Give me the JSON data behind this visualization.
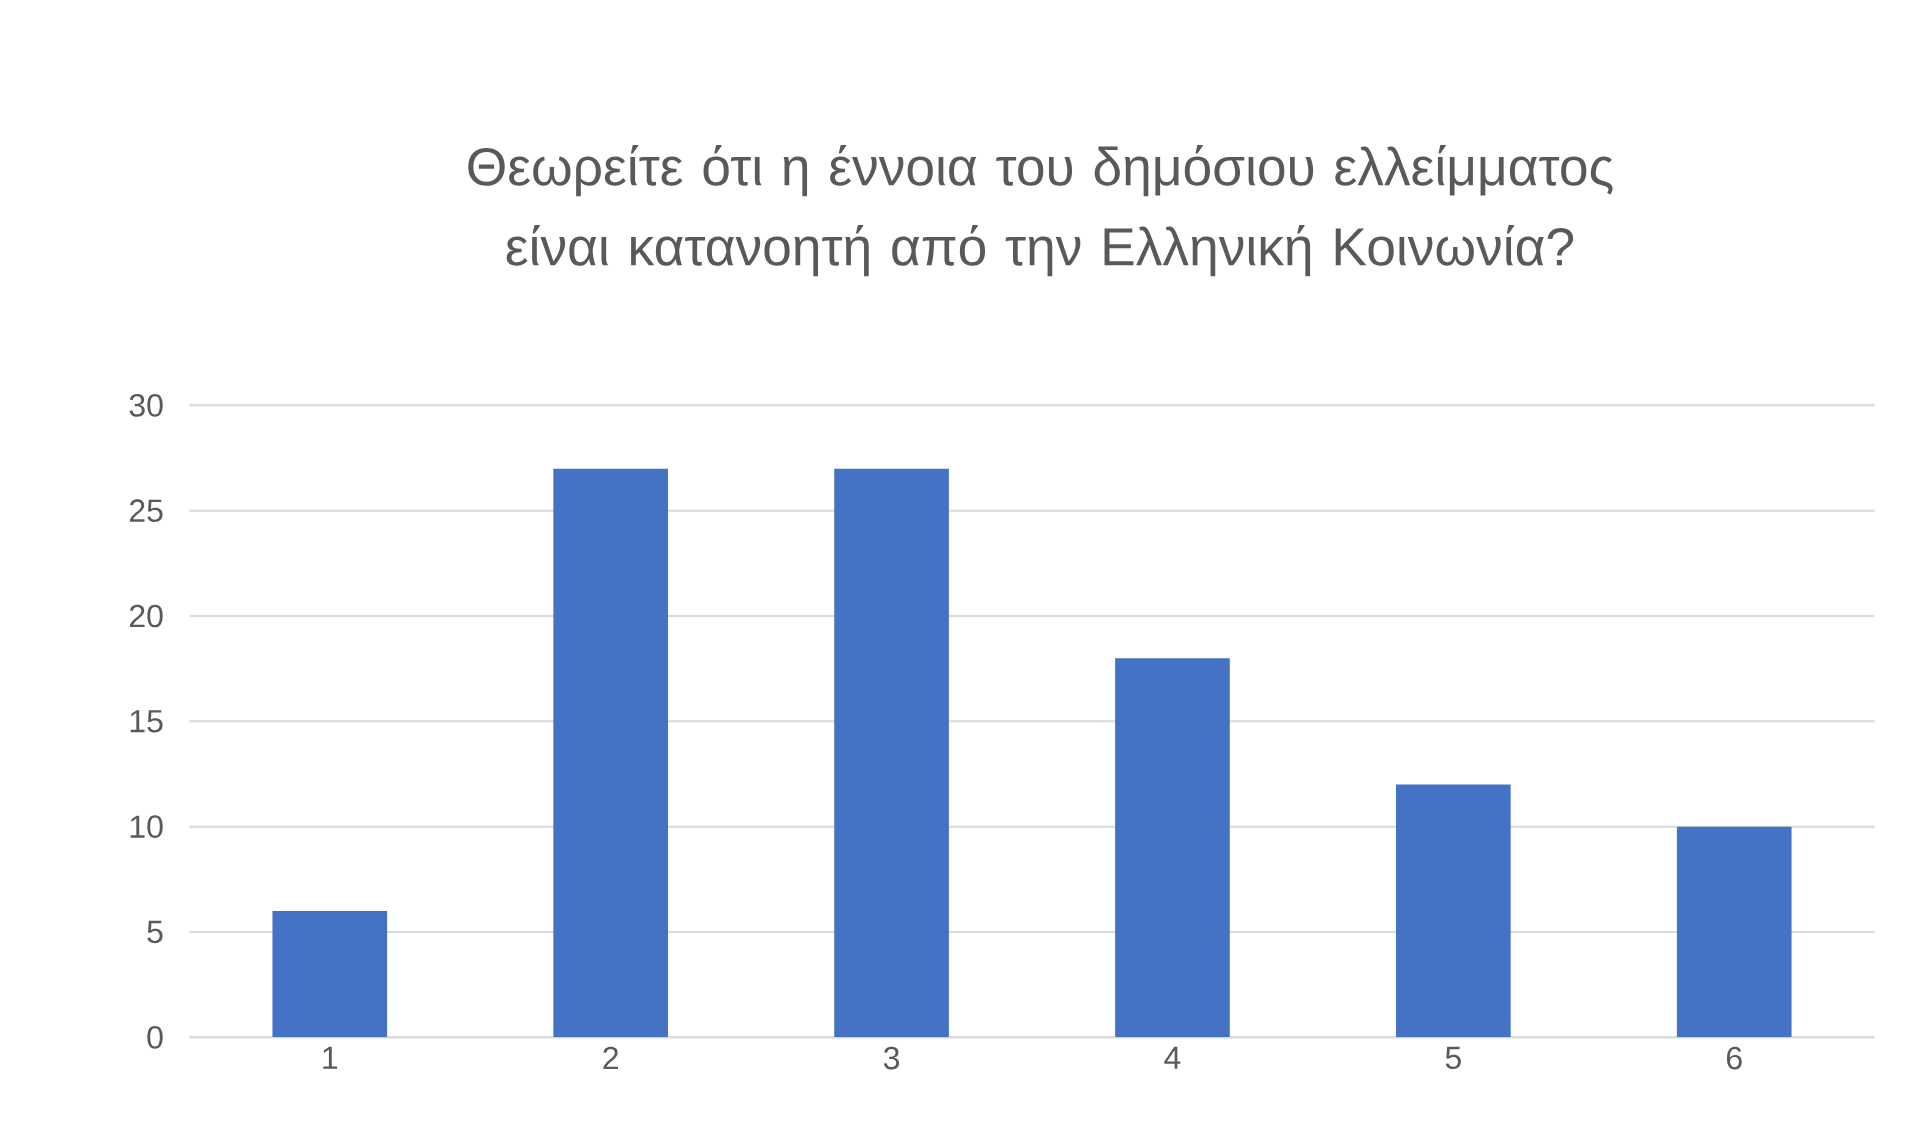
{
  "chart_data": {
    "type": "bar",
    "title": "Θεωρείτε ότι η έννοια του δημόσιου ελλείμματος είναι κατανοητή από την Ελληνική Κοινωνία?",
    "categories": [
      "1",
      "2",
      "3",
      "4",
      "5",
      "6"
    ],
    "values": [
      6,
      27,
      27,
      18,
      12,
      10
    ],
    "color": "#4472c4",
    "ylim": [
      0,
      30
    ],
    "yticks": [
      0,
      5,
      10,
      15,
      20,
      25,
      30
    ],
    "grid": "y"
  }
}
